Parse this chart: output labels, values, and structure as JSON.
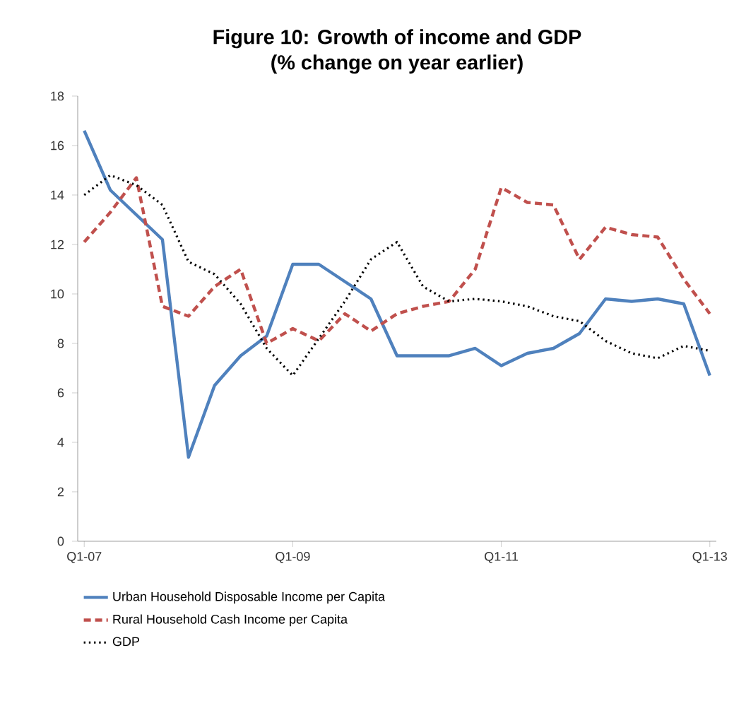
{
  "chart_data": {
    "type": "line",
    "title": "Figure 10: Growth of income and GDP\n(% change on year earlier)",
    "categories": [
      "Q1-07",
      null,
      null,
      null,
      null,
      null,
      null,
      null,
      "Q1-09",
      null,
      null,
      null,
      null,
      null,
      null,
      null,
      "Q1-11",
      null,
      null,
      null,
      null,
      null,
      null,
      null,
      "Q1-13"
    ],
    "series": [
      {
        "name": "Urban Household Disposable Income per Capita",
        "color": "#4f81bd",
        "line_style": "solid",
        "values": [
          16.6,
          14.2,
          13.2,
          12.2,
          3.4,
          6.3,
          7.5,
          8.3,
          11.2,
          11.2,
          10.5,
          9.8,
          7.5,
          7.5,
          7.5,
          7.8,
          7.1,
          7.6,
          7.8,
          8.4,
          9.8,
          9.7,
          9.8,
          9.6,
          6.7
        ]
      },
      {
        "name": "Rural Household Cash Income per Capita",
        "color": "#c0504d",
        "line_style": "dashed",
        "values": [
          12.1,
          13.3,
          14.7,
          9.5,
          9.1,
          10.3,
          11.0,
          8.0,
          8.6,
          8.1,
          9.2,
          8.5,
          9.2,
          9.5,
          9.7,
          11.0,
          14.3,
          13.7,
          13.6,
          11.4,
          12.7,
          12.4,
          12.3,
          10.6,
          9.2
        ]
      },
      {
        "name": "GDP",
        "color": "#000000",
        "line_style": "dotted",
        "values": [
          14.0,
          14.8,
          14.4,
          13.6,
          11.3,
          10.8,
          9.6,
          7.8,
          6.7,
          8.2,
          9.7,
          11.4,
          12.1,
          10.3,
          9.7,
          9.8,
          9.7,
          9.5,
          9.1,
          8.9,
          8.1,
          7.6,
          7.4,
          7.9,
          7.7
        ]
      }
    ],
    "ylim": [
      0,
      18
    ],
    "yticks": [
      0,
      2,
      4,
      6,
      8,
      10,
      12,
      14,
      16,
      18
    ],
    "grid": false,
    "legend": "bottom",
    "marker": "none"
  }
}
